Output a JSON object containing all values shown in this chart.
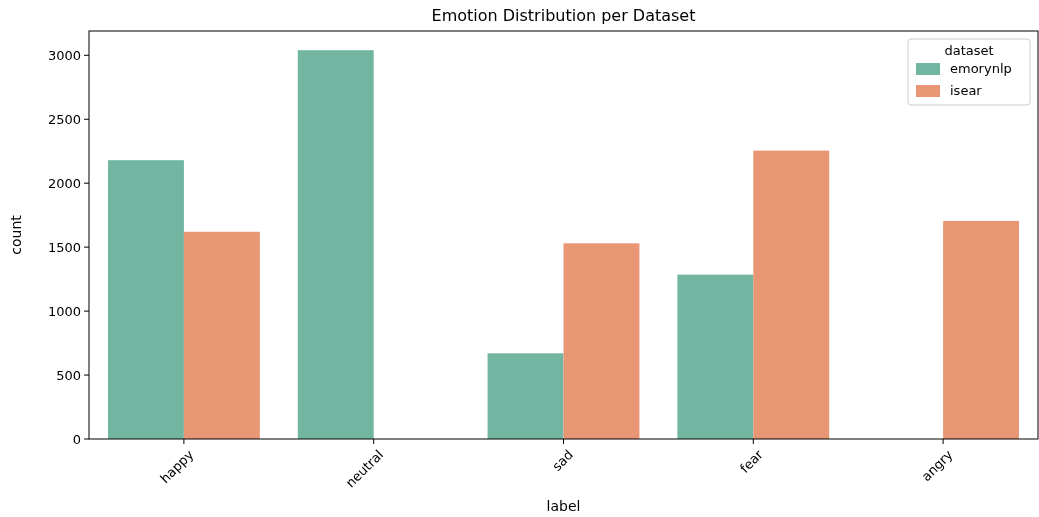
{
  "chart_data": {
    "type": "bar",
    "title": "Emotion Distribution per Dataset",
    "xlabel": "label",
    "ylabel": "count",
    "legend_title": "dataset",
    "categories": [
      "happy",
      "neutral",
      "sad",
      "fear",
      "angry"
    ],
    "series": [
      {
        "name": "emorynlp",
        "color": "#72b6a1",
        "values": [
          2180,
          3040,
          670,
          1285,
          null
        ]
      },
      {
        "name": "isear",
        "color": "#e99675",
        "values": [
          1620,
          null,
          1530,
          2255,
          1705
        ]
      }
    ],
    "ylim": [
      0,
      3190
    ],
    "yticks": [
      0,
      500,
      1000,
      1500,
      2000,
      2500,
      3000
    ],
    "legend": "top right",
    "grid": false
  }
}
